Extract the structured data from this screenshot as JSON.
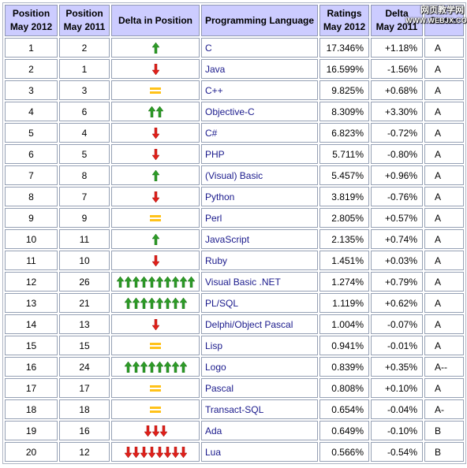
{
  "table": {
    "headers": {
      "pos_2012": [
        "Position",
        "May 2012"
      ],
      "pos_2011": [
        "Position",
        "May 2011"
      ],
      "delta_pos": [
        "Delta in Position"
      ],
      "language": [
        "Programming Language"
      ],
      "ratings": [
        "Ratings",
        "May 2012"
      ],
      "delta_ratings": [
        "Delta",
        "May 2011"
      ],
      "status": [
        "Status"
      ]
    },
    "colors": {
      "header_bg": "#ccccff",
      "up_arrow": "#2d9b27",
      "down_arrow": "#e0201a",
      "equal": "#ffc21a",
      "link": "#1a1a8c"
    },
    "rows": [
      {
        "pos2012": "1",
        "pos2011": "2",
        "change": "up",
        "count": 1,
        "language": "C",
        "rating": "17.346%",
        "delta": "+1.18%",
        "status": "A"
      },
      {
        "pos2012": "2",
        "pos2011": "1",
        "change": "down",
        "count": 1,
        "language": "Java",
        "rating": "16.599%",
        "delta": "-1.56%",
        "status": "A"
      },
      {
        "pos2012": "3",
        "pos2011": "3",
        "change": "equal",
        "count": 1,
        "language": "C++",
        "rating": "9.825%",
        "delta": "+0.68%",
        "status": "A"
      },
      {
        "pos2012": "4",
        "pos2011": "6",
        "change": "up",
        "count": 2,
        "language": "Objective-C",
        "rating": "8.309%",
        "delta": "+3.30%",
        "status": "A"
      },
      {
        "pos2012": "5",
        "pos2011": "4",
        "change": "down",
        "count": 1,
        "language": "C#",
        "rating": "6.823%",
        "delta": "-0.72%",
        "status": "A"
      },
      {
        "pos2012": "6",
        "pos2011": "5",
        "change": "down",
        "count": 1,
        "language": "PHP",
        "rating": "5.711%",
        "delta": "-0.80%",
        "status": "A"
      },
      {
        "pos2012": "7",
        "pos2011": "8",
        "change": "up",
        "count": 1,
        "language": "(Visual) Basic",
        "rating": "5.457%",
        "delta": "+0.96%",
        "status": "A"
      },
      {
        "pos2012": "8",
        "pos2011": "7",
        "change": "down",
        "count": 1,
        "language": "Python",
        "rating": "3.819%",
        "delta": "-0.76%",
        "status": "A"
      },
      {
        "pos2012": "9",
        "pos2011": "9",
        "change": "equal",
        "count": 1,
        "language": "Perl",
        "rating": "2.805%",
        "delta": "+0.57%",
        "status": "A"
      },
      {
        "pos2012": "10",
        "pos2011": "11",
        "change": "up",
        "count": 1,
        "language": "JavaScript",
        "rating": "2.135%",
        "delta": "+0.74%",
        "status": "A"
      },
      {
        "pos2012": "11",
        "pos2011": "10",
        "change": "down",
        "count": 1,
        "language": "Ruby",
        "rating": "1.451%",
        "delta": "+0.03%",
        "status": "A"
      },
      {
        "pos2012": "12",
        "pos2011": "26",
        "change": "up",
        "count": 10,
        "language": "Visual Basic .NET",
        "rating": "1.274%",
        "delta": "+0.79%",
        "status": "A"
      },
      {
        "pos2012": "13",
        "pos2011": "21",
        "change": "up",
        "count": 8,
        "language": "PL/SQL",
        "rating": "1.119%",
        "delta": "+0.62%",
        "status": "A"
      },
      {
        "pos2012": "14",
        "pos2011": "13",
        "change": "down",
        "count": 1,
        "language": "Delphi/Object Pascal",
        "rating": "1.004%",
        "delta": "-0.07%",
        "status": "A"
      },
      {
        "pos2012": "15",
        "pos2011": "15",
        "change": "equal",
        "count": 1,
        "language": "Lisp",
        "rating": "0.941%",
        "delta": "-0.01%",
        "status": "A"
      },
      {
        "pos2012": "16",
        "pos2011": "24",
        "change": "up",
        "count": 8,
        "language": "Logo",
        "rating": "0.839%",
        "delta": "+0.35%",
        "status": "A--"
      },
      {
        "pos2012": "17",
        "pos2011": "17",
        "change": "equal",
        "count": 1,
        "language": "Pascal",
        "rating": "0.808%",
        "delta": "+0.10%",
        "status": "A"
      },
      {
        "pos2012": "18",
        "pos2011": "18",
        "change": "equal",
        "count": 1,
        "language": "Transact-SQL",
        "rating": "0.654%",
        "delta": "-0.04%",
        "status": "A-"
      },
      {
        "pos2012": "19",
        "pos2011": "16",
        "change": "down",
        "count": 3,
        "language": "Ada",
        "rating": "0.649%",
        "delta": "-0.10%",
        "status": "B"
      },
      {
        "pos2012": "20",
        "pos2011": "12",
        "change": "down",
        "count": 8,
        "language": "Lua",
        "rating": "0.566%",
        "delta": "-0.54%",
        "status": "B"
      }
    ]
  },
  "watermark": {
    "line1": "网页教学网",
    "line2": "WWW.WEBJX.COM"
  }
}
